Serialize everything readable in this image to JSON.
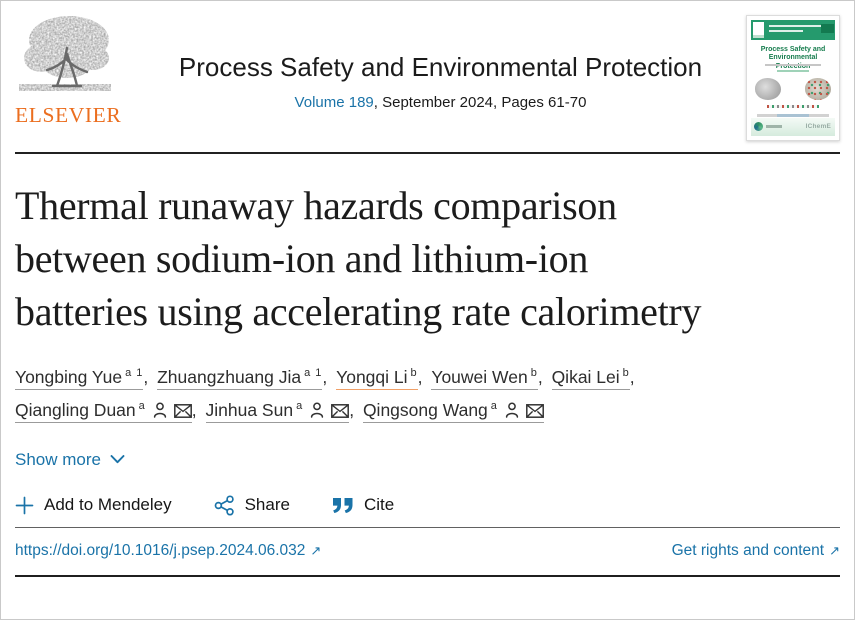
{
  "header": {
    "publisher_wordmark": "ELSEVIER",
    "journal_title": "Process Safety and Environmental Protection",
    "volume_link": "Volume 189",
    "issue_info": ", September 2024, Pages 61-70",
    "cover": {
      "title": "Process Safety and Environmental Protection",
      "society": "IChemE"
    }
  },
  "article": {
    "title_lines": [
      "Thermal runaway hazards comparison",
      "between sodium-ion and lithium-ion",
      "batteries using accelerating rate calorimetry"
    ]
  },
  "authors": [
    {
      "name": "Yongbing Yue",
      "sup": "a 1",
      "person_icon": false,
      "envelope_icon": false,
      "highlight": false,
      "break_after": false
    },
    {
      "name": "Zhuangzhuang Jia",
      "sup": "a 1",
      "person_icon": false,
      "envelope_icon": false,
      "highlight": false,
      "break_after": false
    },
    {
      "name": "Yongqi Li",
      "sup": "b",
      "person_icon": false,
      "envelope_icon": false,
      "highlight": true,
      "break_after": false
    },
    {
      "name": "Youwei Wen",
      "sup": "b",
      "person_icon": false,
      "envelope_icon": false,
      "highlight": false,
      "break_after": false
    },
    {
      "name": "Qikai Lei",
      "sup": "b",
      "person_icon": false,
      "envelope_icon": false,
      "highlight": false,
      "break_after": true
    },
    {
      "name": "Qiangling Duan",
      "sup": "a",
      "person_icon": true,
      "envelope_icon": true,
      "highlight": false,
      "break_after": false
    },
    {
      "name": "Jinhua Sun",
      "sup": "a",
      "person_icon": true,
      "envelope_icon": true,
      "highlight": false,
      "break_after": false
    },
    {
      "name": "Qingsong Wang",
      "sup": "a",
      "person_icon": true,
      "envelope_icon": true,
      "highlight": false,
      "break_after": false
    }
  ],
  "controls": {
    "show_more": "Show more",
    "add_to_mendeley": "Add to Mendeley",
    "share": "Share",
    "cite": "Cite"
  },
  "footer": {
    "doi_link": "https://doi.org/10.1016/j.psep.2024.06.032",
    "rights_link": "Get rights and content"
  },
  "icons": {
    "external_arrow": "↗"
  },
  "colors": {
    "link_blue": "#1a73a8",
    "elsevier_orange": "#eb6e1f",
    "cover_green": "#259a6d",
    "highlight_underline": "#f0a068",
    "rule_dark": "#1f1f1f"
  }
}
